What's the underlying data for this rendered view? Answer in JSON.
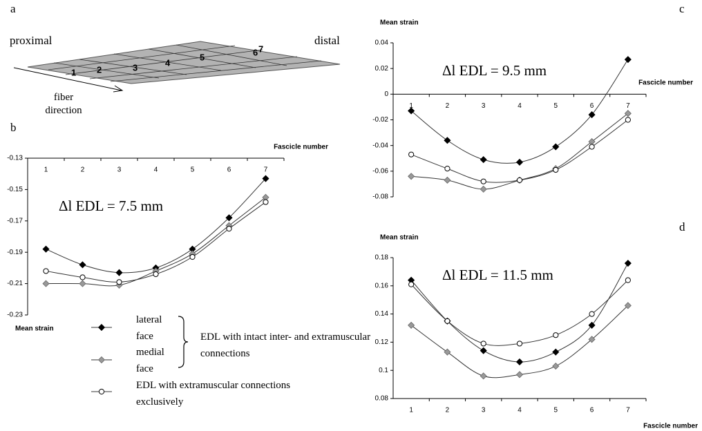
{
  "figure": {
    "panel_labels": [
      "a",
      "b",
      "c",
      "d"
    ],
    "diagram": {
      "proximal": "proximal",
      "distal": "distal",
      "fiber_direction": "fiber direction",
      "fascicles": [
        "1",
        "2",
        "3",
        "4",
        "5",
        "6",
        "7"
      ]
    },
    "legend_group_label": "EDL with intact inter- and extramuscular connections"
  },
  "chart_data": [
    {
      "type": "line",
      "annotation": "Δl EDL = 7.5 mm",
      "x_label": "Fascicle number",
      "y_label": "Mean strain",
      "categories": [
        "1",
        "2",
        "3",
        "4",
        "5",
        "6",
        "7"
      ],
      "series": [
        {
          "name": "lateral face",
          "color": "#000000",
          "marker": "diamond",
          "values": [
            -0.188,
            -0.198,
            -0.203,
            -0.2,
            -0.188,
            -0.168,
            -0.143
          ]
        },
        {
          "name": "medial face",
          "color": "#999999",
          "marker": "diamond",
          "values": [
            -0.21,
            -0.21,
            -0.211,
            -0.202,
            -0.191,
            -0.173,
            -0.155
          ]
        },
        {
          "name": "EDL with extramuscular connections exclusively",
          "color": "#ffffff",
          "marker": "circle",
          "values": [
            -0.202,
            -0.206,
            -0.209,
            -0.204,
            -0.193,
            -0.175,
            -0.158
          ]
        }
      ],
      "ylim": [
        -0.23,
        -0.13
      ],
      "yticks": [
        -0.23,
        -0.21,
        -0.19,
        -0.17,
        -0.15,
        -0.13
      ]
    },
    {
      "type": "line",
      "annotation": "Δl EDL = 9.5 mm",
      "x_label": "Fascicle number",
      "y_label": "Mean strain",
      "categories": [
        "1",
        "2",
        "3",
        "4",
        "5",
        "6",
        "7"
      ],
      "series": [
        {
          "color": "#000000",
          "marker": "diamond",
          "values": [
            -0.013,
            -0.036,
            -0.051,
            -0.053,
            -0.041,
            -0.016,
            0.027
          ]
        },
        {
          "color": "#999999",
          "marker": "diamond",
          "values": [
            -0.064,
            -0.067,
            -0.074,
            -0.067,
            -0.058,
            -0.037,
            -0.015
          ]
        },
        {
          "color": "#ffffff",
          "marker": "circle",
          "values": [
            -0.047,
            -0.058,
            -0.068,
            -0.067,
            -0.059,
            -0.041,
            -0.02
          ]
        }
      ],
      "ylim": [
        -0.08,
        0.04
      ],
      "yticks": [
        -0.08,
        -0.06,
        -0.04,
        -0.02,
        0,
        0.02,
        0.04
      ]
    },
    {
      "type": "line",
      "annotation": "Δl EDL = 11.5 mm",
      "x_label": "Fascicle number",
      "y_label": "Mean strain",
      "categories": [
        "1",
        "2",
        "3",
        "4",
        "5",
        "6",
        "7"
      ],
      "series": [
        {
          "color": "#000000",
          "marker": "diamond",
          "values": [
            0.164,
            0.135,
            0.114,
            0.106,
            0.113,
            0.132,
            0.176
          ]
        },
        {
          "color": "#999999",
          "marker": "diamond",
          "values": [
            0.132,
            0.113,
            0.096,
            0.097,
            0.103,
            0.122,
            0.146
          ]
        },
        {
          "color": "#ffffff",
          "marker": "circle",
          "values": [
            0.161,
            0.135,
            0.119,
            0.119,
            0.125,
            0.14,
            0.164
          ]
        }
      ],
      "ylim": [
        0.08,
        0.18
      ],
      "yticks": [
        0.08,
        0.1,
        0.12,
        0.14,
        0.16,
        0.18
      ]
    }
  ]
}
